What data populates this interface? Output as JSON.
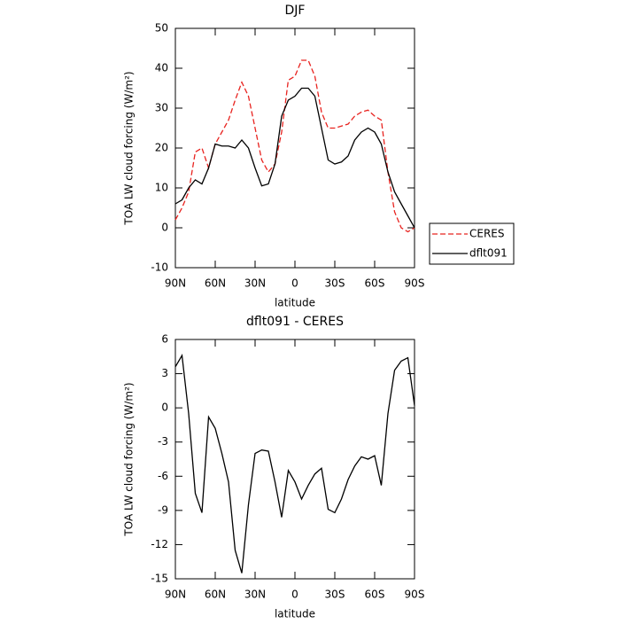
{
  "chart_data": [
    {
      "type": "line",
      "title": "DJF",
      "x_label": "latitude",
      "y_label": "TOA LW cloud forcing (W/m²)",
      "x": [
        90,
        85,
        80,
        75,
        70,
        65,
        60,
        55,
        50,
        45,
        40,
        35,
        30,
        25,
        20,
        15,
        10,
        5,
        0,
        -5,
        -10,
        -15,
        -20,
        -25,
        -30,
        -35,
        -40,
        -45,
        -50,
        -55,
        -60,
        -65,
        -70,
        -75,
        -80,
        -85,
        -90
      ],
      "xlim": [
        90,
        -90
      ],
      "xticks": [
        {
          "value": 90,
          "label": "90N"
        },
        {
          "value": 60,
          "label": "60N"
        },
        {
          "value": 30,
          "label": "30N"
        },
        0,
        {
          "value": -30,
          "label": "30S"
        },
        {
          "value": -60,
          "label": "60S"
        },
        {
          "value": -90,
          "label": "90S"
        }
      ],
      "ylim": [
        -10,
        50
      ],
      "yticks": [
        -10,
        0,
        10,
        20,
        30,
        40,
        50
      ],
      "legend": "right",
      "series": [
        {
          "name": "CERES",
          "color": "#e8231f",
          "line_style": "dashed",
          "values": [
            2,
            5,
            9,
            19,
            20,
            15,
            21,
            24,
            27,
            32,
            36.5,
            33,
            25,
            17,
            14,
            16,
            24,
            37,
            38,
            42,
            42,
            38,
            29,
            25,
            25,
            25.5,
            26,
            28,
            29,
            29.5,
            28,
            27,
            14,
            4,
            0,
            -1,
            0
          ]
        },
        {
          "name": "dflt091",
          "color": "#000000",
          "line_style": "solid",
          "values": [
            6,
            7,
            10,
            12,
            11,
            15,
            21,
            20.5,
            20.5,
            20,
            22,
            20,
            15,
            10.5,
            11,
            16,
            28,
            32,
            33,
            35,
            35,
            33,
            25,
            17,
            16,
            16.5,
            18,
            22,
            24,
            25,
            24,
            21,
            14,
            9,
            6,
            3,
            0
          ]
        }
      ]
    },
    {
      "type": "line",
      "title": "dflt091 - CERES",
      "x_label": "latitude",
      "y_label": "TOA LW cloud forcing (W/m²)",
      "x": [
        90,
        85,
        80,
        75,
        70,
        65,
        60,
        55,
        50,
        45,
        40,
        35,
        30,
        25,
        20,
        15,
        10,
        5,
        0,
        -5,
        -10,
        -15,
        -20,
        -25,
        -30,
        -35,
        -40,
        -45,
        -50,
        -55,
        -60,
        -65,
        -70,
        -75,
        -80,
        -85,
        -90
      ],
      "xlim": [
        90,
        -90
      ],
      "xticks": [
        {
          "value": 90,
          "label": "90N"
        },
        {
          "value": 60,
          "label": "60N"
        },
        {
          "value": 30,
          "label": "30N"
        },
        0,
        {
          "value": -30,
          "label": "30S"
        },
        {
          "value": -60,
          "label": "60S"
        },
        {
          "value": -90,
          "label": "90S"
        }
      ],
      "ylim": [
        -15,
        6
      ],
      "yticks": [
        -15,
        -12,
        -9,
        -6,
        -3,
        0,
        3,
        6
      ],
      "color": "#000000",
      "line_style": "solid",
      "values": [
        3.6,
        4.6,
        -0.5,
        -7.5,
        -9.2,
        -0.8,
        -1.8,
        -4,
        -6.5,
        -12.5,
        -14.5,
        -8.5,
        -4,
        -3.7,
        -3.8,
        -6.5,
        -9.6,
        -5.5,
        -6.5,
        -8,
        -6.8,
        -5.8,
        -5.3,
        -8.9,
        -9.2,
        -8,
        -6.3,
        -5.1,
        -4.3,
        -4.5,
        -4.2,
        -6.8,
        -0.5,
        3.3,
        4.1,
        4.4,
        0.2
      ]
    }
  ]
}
